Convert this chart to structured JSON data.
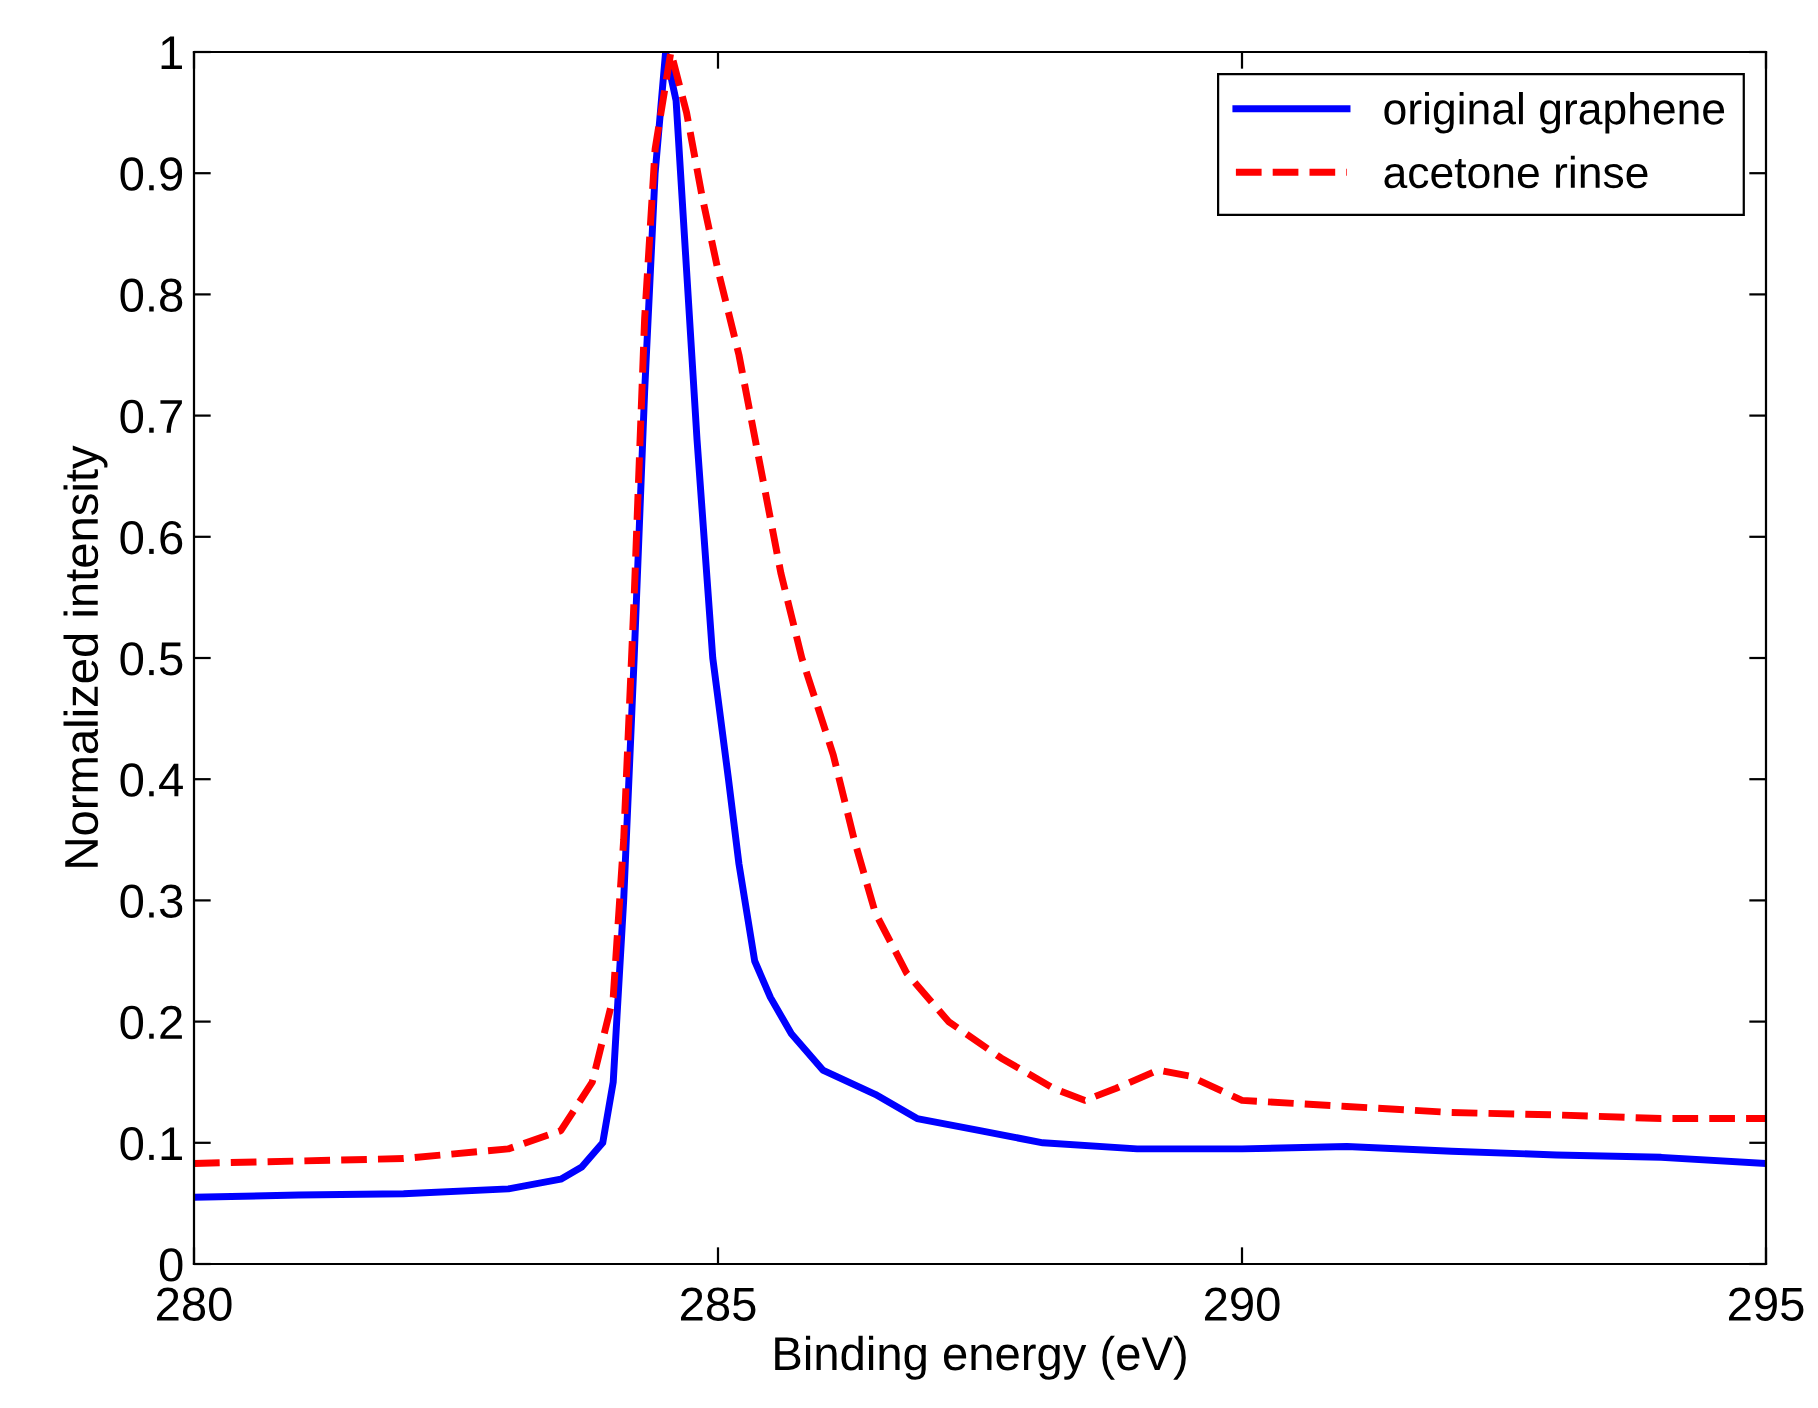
{
  "chart_data": {
    "type": "line",
    "xlabel": "Binding energy (eV)",
    "ylabel": "Normalized intensity",
    "xlim": [
      280,
      295
    ],
    "ylim": [
      0,
      1
    ],
    "xticks": [
      280,
      285,
      290,
      295
    ],
    "yticks": [
      0,
      0.1,
      0.2,
      0.3,
      0.4,
      0.5,
      0.6,
      0.7,
      0.8,
      0.9,
      1
    ],
    "grid": false,
    "legend": "top right",
    "series": [
      {
        "name": "original graphene",
        "color": "#0000ff",
        "line_style": "solid",
        "x": [
          280,
          281,
          282,
          283,
          283.5,
          283.7,
          283.9,
          284.0,
          284.1,
          284.2,
          284.3,
          284.4,
          284.5,
          284.6,
          284.7,
          284.8,
          284.95,
          285.1,
          285.2,
          285.35,
          285.5,
          285.7,
          286.0,
          286.5,
          286.9,
          287.5,
          288.1,
          289,
          290,
          291,
          292,
          293,
          294,
          295
        ],
        "values": [
          0.055,
          0.057,
          0.058,
          0.062,
          0.07,
          0.08,
          0.1,
          0.15,
          0.3,
          0.5,
          0.72,
          0.9,
          1.0,
          0.96,
          0.82,
          0.68,
          0.5,
          0.4,
          0.33,
          0.25,
          0.22,
          0.19,
          0.16,
          0.14,
          0.12,
          0.11,
          0.1,
          0.095,
          0.095,
          0.097,
          0.093,
          0.09,
          0.088,
          0.083
        ]
      },
      {
        "name": "acetone rinse",
        "color": "#ff0000",
        "line_style": "dashed",
        "x": [
          280,
          281,
          282,
          283,
          283.5,
          283.8,
          284.0,
          284.1,
          284.2,
          284.3,
          284.4,
          284.55,
          284.7,
          284.85,
          285.0,
          285.2,
          285.4,
          285.6,
          285.8,
          286.1,
          286.3,
          286.5,
          286.8,
          287.2,
          287.7,
          288.2,
          288.5,
          288.8,
          289.2,
          289.5,
          290,
          291,
          292,
          293,
          294,
          295
        ],
        "values": [
          0.083,
          0.085,
          0.087,
          0.095,
          0.11,
          0.15,
          0.22,
          0.35,
          0.55,
          0.78,
          0.92,
          1.0,
          0.95,
          0.88,
          0.82,
          0.75,
          0.66,
          0.57,
          0.5,
          0.42,
          0.35,
          0.29,
          0.24,
          0.2,
          0.17,
          0.145,
          0.135,
          0.145,
          0.16,
          0.155,
          0.135,
          0.13,
          0.125,
          0.123,
          0.12,
          0.12
        ]
      }
    ]
  }
}
